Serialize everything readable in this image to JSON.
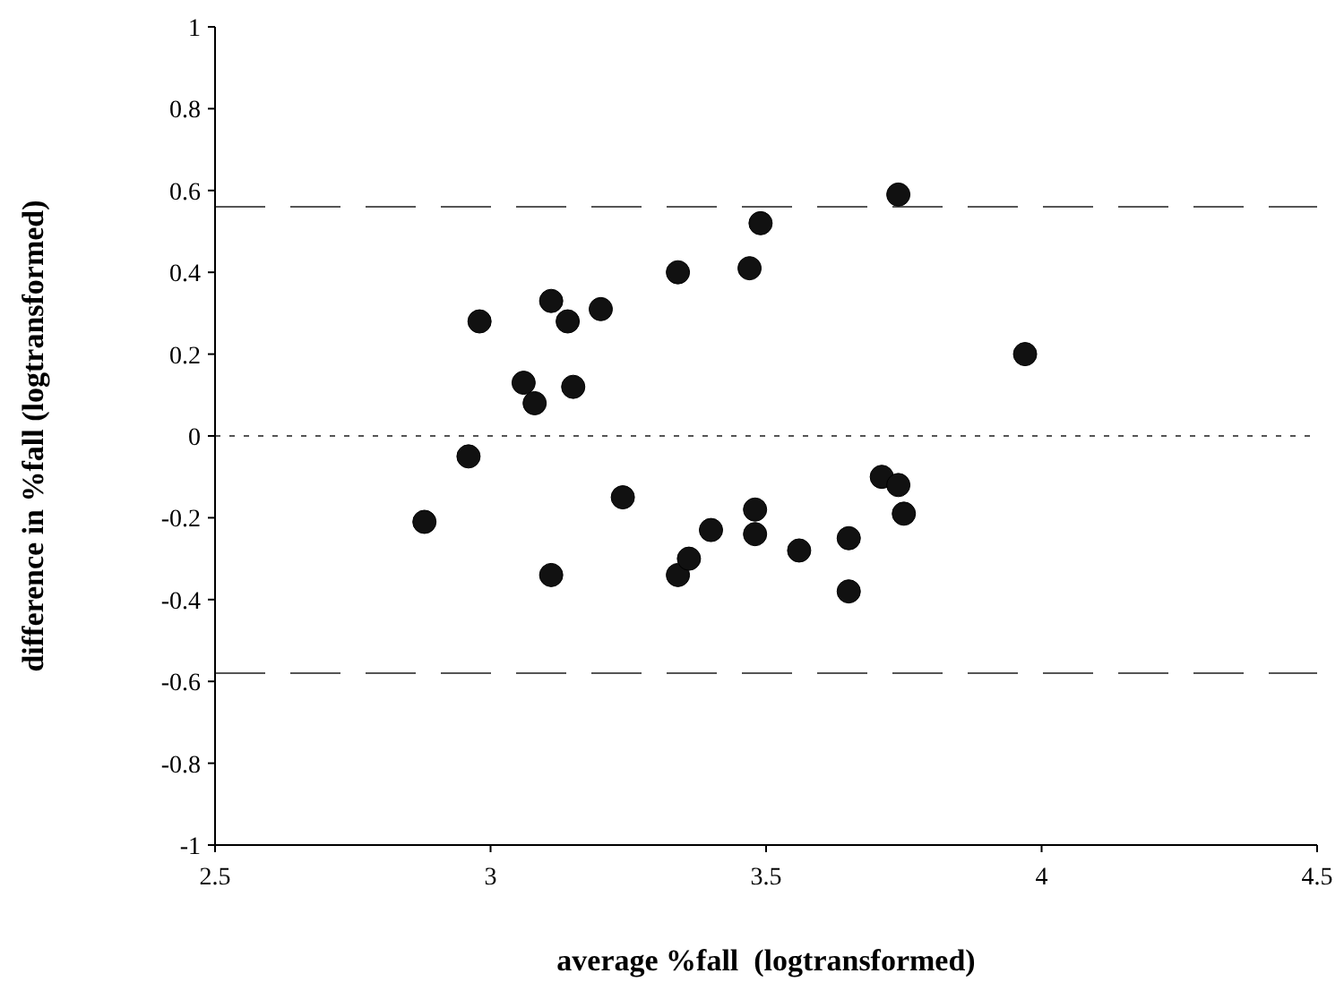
{
  "chart_data": {
    "type": "scatter",
    "xlabel": "average %fall  (logtransformed)",
    "ylabel": "difference in %fall (logtransformed)",
    "x": [
      2.88,
      2.96,
      2.98,
      3.06,
      3.08,
      3.11,
      3.14,
      3.15,
      3.11,
      3.2,
      3.24,
      3.34,
      3.34,
      3.36,
      3.4,
      3.47,
      3.49,
      3.48,
      3.48,
      3.56,
      3.65,
      3.65,
      3.71,
      3.74,
      3.75,
      3.74,
      3.97
    ],
    "series": [
      {
        "color": "#111111",
        "values": [
          -0.21,
          -0.05,
          0.28,
          0.13,
          0.08,
          0.33,
          0.28,
          0.12,
          -0.34,
          0.31,
          -0.15,
          0.4,
          -0.34,
          -0.3,
          -0.23,
          0.41,
          0.52,
          -0.18,
          -0.24,
          -0.28,
          -0.25,
          -0.38,
          -0.1,
          -0.12,
          -0.19,
          0.59,
          0.2
        ]
      }
    ],
    "xlim": [
      2.5,
      4.5
    ],
    "xticks": [
      2.5,
      3,
      3.5,
      4,
      4.5
    ],
    "ylim": [
      -1,
      1
    ],
    "yticks": [
      -1,
      -0.8,
      -0.6,
      -0.4,
      -0.2,
      0,
      0.2,
      0.4,
      0.6,
      0.8,
      1
    ],
    "marker": "circle",
    "grid": false,
    "ref_lines": [
      {
        "axis": "y",
        "value": 0.56,
        "color": "#555555",
        "line_style": "dashed"
      },
      {
        "axis": "y",
        "value": 0,
        "color": "#555555",
        "line_style": "dotted"
      },
      {
        "axis": "y",
        "value": -0.58,
        "color": "#555555",
        "line_style": "dashed"
      }
    ]
  }
}
